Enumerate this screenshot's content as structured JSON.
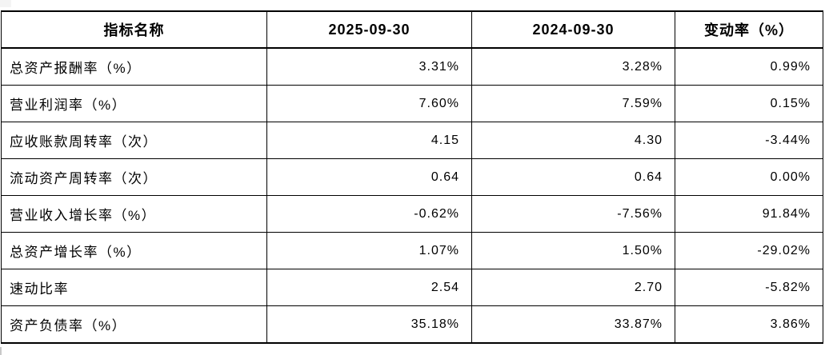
{
  "table": {
    "columns": [
      "指标名称",
      "2025-09-30",
      "2024-09-30",
      "变动率（%）"
    ],
    "rows": [
      {
        "label": "总资产报酬率（%）",
        "v2025": "3.31%",
        "v2024": "3.28%",
        "change": "0.99%"
      },
      {
        "label": "营业利润率（%）",
        "v2025": "7.60%",
        "v2024": "7.59%",
        "change": "0.15%"
      },
      {
        "label": "应收账款周转率（次）",
        "v2025": "4.15",
        "v2024": "4.30",
        "change": "-3.44%"
      },
      {
        "label": "流动资产周转率（次）",
        "v2025": "0.64",
        "v2024": "0.64",
        "change": "0.00%"
      },
      {
        "label": "营业收入增长率（%）",
        "v2025": "-0.62%",
        "v2024": "-7.56%",
        "change": "91.84%"
      },
      {
        "label": "总资产增长率（%）",
        "v2025": "1.07%",
        "v2024": "1.50%",
        "change": "-29.02%"
      },
      {
        "label": "速动比率",
        "v2025": "2.54",
        "v2024": "2.70",
        "change": "-5.82%"
      },
      {
        "label": "资产负债率（%）",
        "v2025": "35.18%",
        "v2024": "33.87%",
        "change": "3.86%"
      }
    ]
  },
  "colors": {
    "border": "#000000",
    "text": "#000000",
    "background": "#ffffff"
  }
}
